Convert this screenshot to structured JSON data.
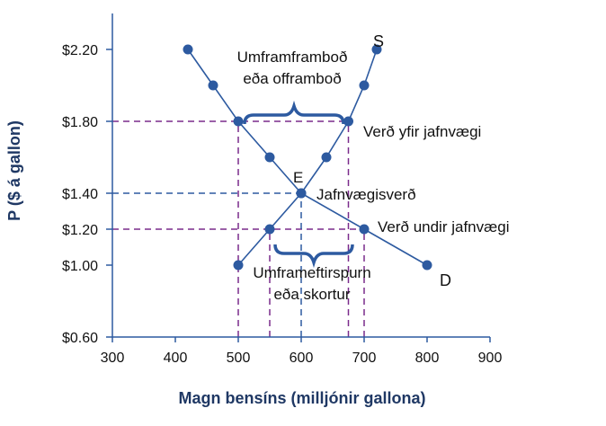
{
  "chart_data": {
    "type": "line",
    "xlabel": "Magn bensíns (milljónir gallona)",
    "ylabel": "P ($ á gallon)",
    "xlim": [
      300,
      900
    ],
    "ylim": [
      0.6,
      2.4
    ],
    "x_ticks": [
      {
        "value": 300,
        "label": "300"
      },
      {
        "value": 400,
        "label": "400"
      },
      {
        "value": 500,
        "label": "500"
      },
      {
        "value": 600,
        "label": "600"
      },
      {
        "value": 700,
        "label": "700"
      },
      {
        "value": 800,
        "label": "800"
      },
      {
        "value": 900,
        "label": "900"
      }
    ],
    "y_ticks": [
      {
        "value": 0.6,
        "label": "$0.60"
      },
      {
        "value": 1.0,
        "label": "$1.00"
      },
      {
        "value": 1.2,
        "label": "$1.20"
      },
      {
        "value": 1.4,
        "label": "$1.40"
      },
      {
        "value": 1.8,
        "label": "$1.80"
      },
      {
        "value": 2.2,
        "label": "$2.20"
      }
    ],
    "series": [
      {
        "name": "S",
        "color": "#2d5aa0",
        "points": [
          {
            "x": 500,
            "y": 1.0
          },
          {
            "x": 550,
            "y": 1.2
          },
          {
            "x": 600,
            "y": 1.4
          },
          {
            "x": 640,
            "y": 1.6
          },
          {
            "x": 675,
            "y": 1.8
          },
          {
            "x": 700,
            "y": 2.0
          },
          {
            "x": 720,
            "y": 2.2
          }
        ]
      },
      {
        "name": "D",
        "color": "#2d5aa0",
        "points": [
          {
            "x": 420,
            "y": 2.2
          },
          {
            "x": 460,
            "y": 2.0
          },
          {
            "x": 500,
            "y": 1.8
          },
          {
            "x": 550,
            "y": 1.6
          },
          {
            "x": 600,
            "y": 1.4
          },
          {
            "x": 700,
            "y": 1.2
          },
          {
            "x": 800,
            "y": 1.0
          }
        ]
      }
    ],
    "reference_lines": [
      {
        "kind": "h",
        "y": 1.8,
        "x_end": 675,
        "color": "#7a2b8c"
      },
      {
        "kind": "h",
        "y": 1.4,
        "x_end": 600,
        "color": "#2d5aa0"
      },
      {
        "kind": "h",
        "y": 1.2,
        "x_end": 700,
        "color": "#7a2b8c"
      },
      {
        "kind": "v",
        "x": 500,
        "y_end": 1.8,
        "color": "#7a2b8c"
      },
      {
        "kind": "v",
        "x": 675,
        "y_end": 1.8,
        "color": "#7a2b8c"
      },
      {
        "kind": "v",
        "x": 550,
        "y_end": 1.2,
        "color": "#7a2b8c"
      },
      {
        "kind": "v",
        "x": 700,
        "y_end": 1.2,
        "color": "#7a2b8c"
      },
      {
        "kind": "v",
        "x": 600,
        "y_end": 1.4,
        "color": "#2d5aa0"
      }
    ],
    "annotations": {
      "surplus": {
        "line1": "Umframframboð",
        "line2": "eða offramboð"
      },
      "above_equilibrium": "Verð yfir jafnvægi",
      "equilibrium_point": "E",
      "equilibrium_price": "Jafnvægisverð",
      "below_equilibrium": "Verð undir jafnvægi",
      "shortage": {
        "line1": "Umframeftirspurn",
        "line2": "eða skortur"
      }
    },
    "colors": {
      "axis": "#2d5aa0",
      "curve": "#2d5aa0",
      "guide": "#7a2b8c",
      "axis_title": "#1f3864"
    },
    "grid": false
  }
}
